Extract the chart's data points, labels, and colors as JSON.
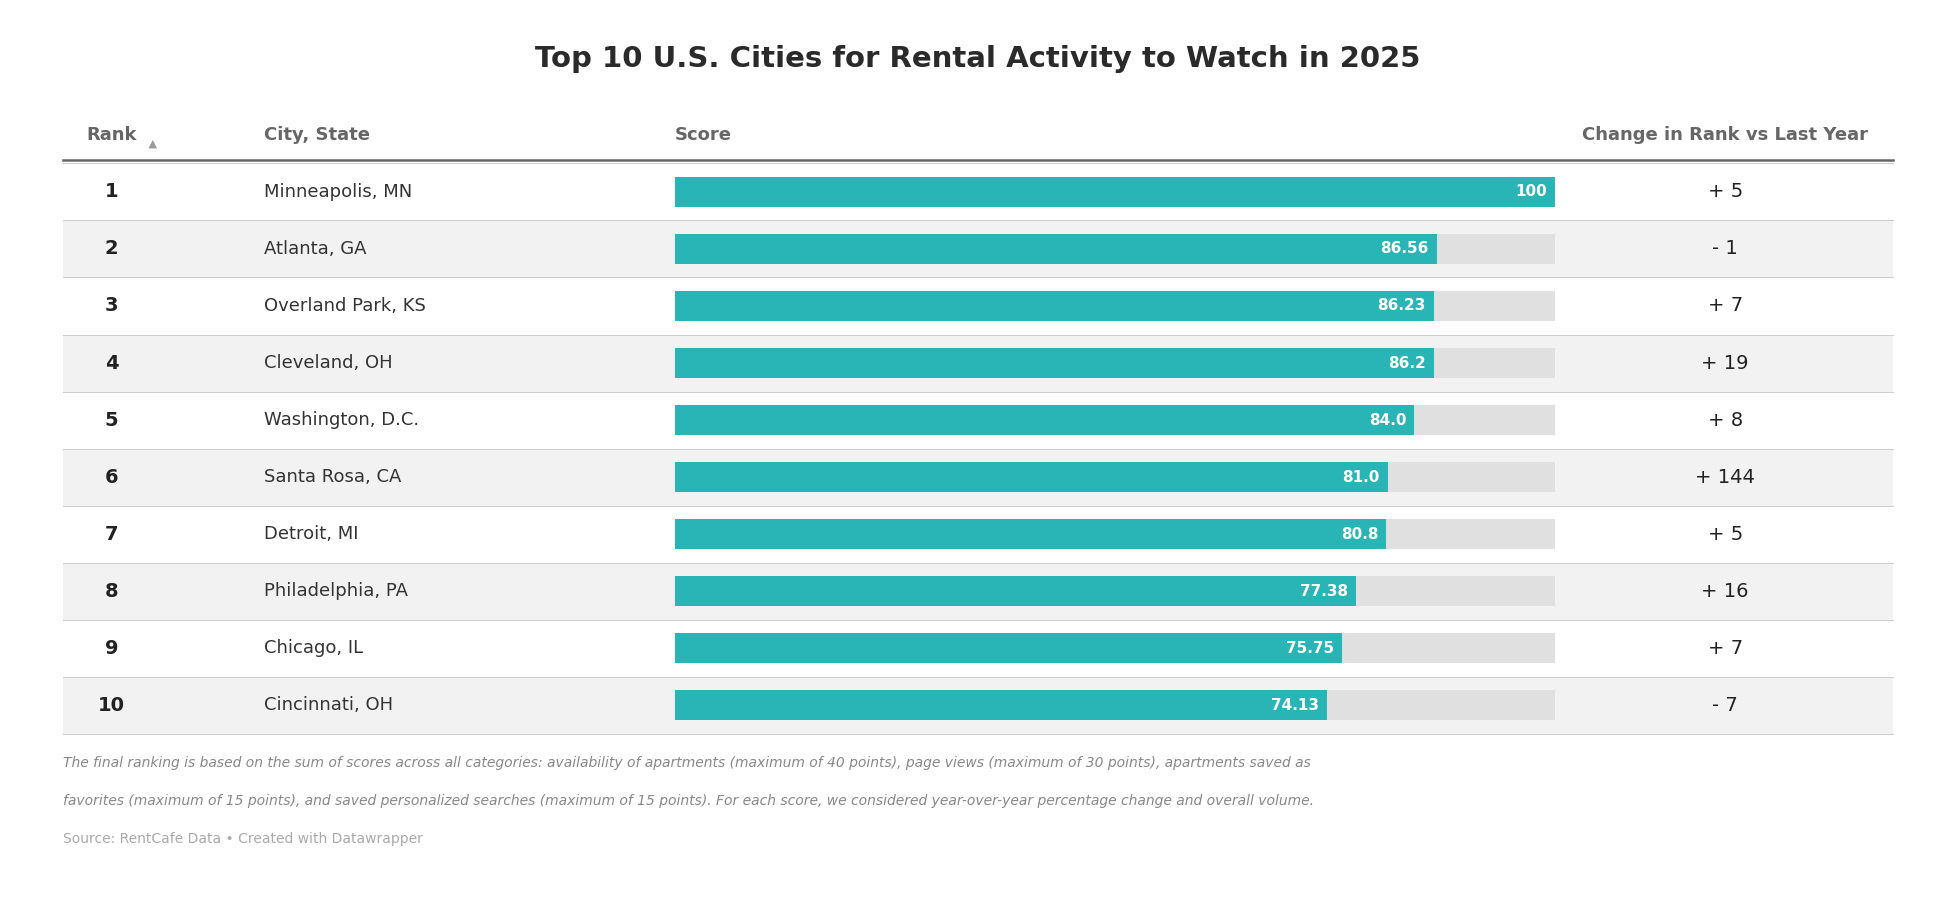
{
  "title": "Top 10 U.S. Cities for Rental Activity to Watch in 2025",
  "ranks": [
    1,
    2,
    3,
    4,
    5,
    6,
    7,
    8,
    9,
    10
  ],
  "cities": [
    "Minneapolis, MN",
    "Atlanta, GA",
    "Overland Park, KS",
    "Cleveland, OH",
    "Washington, D.C.",
    "Santa Rosa, CA",
    "Detroit, MI",
    "Philadelphia, PA",
    "Chicago, IL",
    "Cincinnati, OH"
  ],
  "scores": [
    100,
    86.56,
    86.23,
    86.2,
    84.0,
    81.0,
    80.8,
    77.38,
    75.75,
    74.13
  ],
  "score_labels": [
    "100",
    "86.56",
    "86.23",
    "86.2",
    "84.0",
    "81.0",
    "80.8",
    "77.38",
    "75.75",
    "74.13"
  ],
  "changes": [
    "+ 5",
    "- 1",
    "+ 7",
    "+ 19",
    "+ 8",
    "+ 144",
    "+ 5",
    "+ 16",
    "+ 7",
    "- 7"
  ],
  "bar_color": "#29b5b5",
  "bg_color_odd": "#f2f2f2",
  "bg_color_even": "#ffffff",
  "header_line_color": "#555555",
  "rank_col_header": "Rank",
  "rank_arrow": " ▲",
  "city_col_header": "City, State",
  "score_col_header": "Score",
  "change_col_header": "Change in Rank vs Last Year",
  "footnote_line1": "The final ranking is based on the sum of scores across all categories: availability of apartments (maximum of 40 points), page views (maximum of 30 points), apartments saved as",
  "footnote_line2": "favorites (maximum of 15 points), and saved personalized searches (maximum of 15 points). For each score, we considered year-over-year percentage change and overall volume.",
  "source_line": "Source: RentCafe Data • Created with Datawrapper",
  "bar_max": 100,
  "bar_bg_color": "#e0e0e0",
  "sep_line_color": "#cccccc",
  "header_sep_color": "#666666"
}
